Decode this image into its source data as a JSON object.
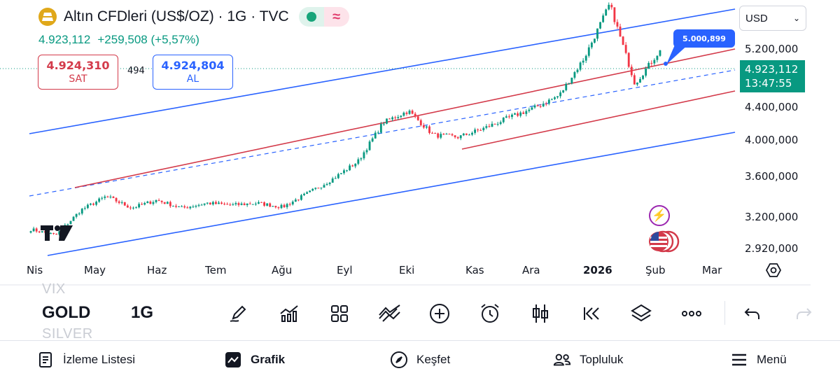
{
  "header": {
    "title": "Altın CFDleri (US$/OZ) · 1G · TVC",
    "last_price": "4.923,112",
    "change": "+259,508 (+5,57%)",
    "market_status_icon": "market-open-icon",
    "wave_icon": "wave-icon"
  },
  "quote": {
    "sell_price": "4.924,310",
    "sell_label": "SAT",
    "spread": "494",
    "buy_price": "4.924,804",
    "buy_label": "AL"
  },
  "currency": {
    "selected": "USD"
  },
  "price_axis": {
    "labels": [
      "5.200,000",
      "4.400,000",
      "4.000,000",
      "3.600,000",
      "3.200,000",
      "2.920,000"
    ],
    "current_price": "4.923,112",
    "countdown": "13:47:55"
  },
  "time_axis": {
    "labels": [
      "Nis",
      "May",
      "Haz",
      "Tem",
      "Ağu",
      "Eyl",
      "Eki",
      "Kas",
      "Ara",
      "2026",
      "Şub",
      "Mar"
    ]
  },
  "annotations": {
    "callout_price": "5.000,899"
  },
  "symbol_list": {
    "above": "VIX",
    "current": "GOLD",
    "below": "SILVER",
    "interval": "1G"
  },
  "toolbar": {
    "icons": [
      "pencil-icon",
      "indicators-icon",
      "layout-grid-icon",
      "compare-icon",
      "add-icon",
      "alarm-icon",
      "candles-icon",
      "replay-icon",
      "layers-icon",
      "more-icon",
      "undo-icon",
      "redo-icon"
    ]
  },
  "bottom_nav": {
    "watchlist": "İzleme Listesi",
    "chart": "Grafik",
    "explore": "Keşfet",
    "community": "Topluluk",
    "menu": "Menü"
  },
  "colors": {
    "up": "#089981",
    "down": "#f23645",
    "channel_blue": "#2962ff",
    "channel_red": "#d33a4a",
    "gold": "#e0a81a"
  },
  "chart_data": {
    "type": "candlestick",
    "symbol": "Altın CFDleri (US$/OZ)",
    "interval": "1G",
    "x_labels": [
      "Nis",
      "May",
      "Haz",
      "Tem",
      "Ağu",
      "Eyl",
      "Eki",
      "Kas",
      "Ara",
      "2026",
      "Şub",
      "Mar"
    ],
    "y_ticks": [
      2920,
      3200,
      3600,
      4000,
      4400,
      5200
    ],
    "ylim": [
      2900,
      5600
    ],
    "close_path": [
      [
        "Nis",
        3080
      ],
      [
        "Nis",
        3020
      ],
      [
        "Nis",
        3280
      ],
      [
        "May",
        3420
      ],
      [
        "May",
        3300
      ],
      [
        "Haz",
        3380
      ],
      [
        "Haz",
        3300
      ],
      [
        "Tem",
        3350
      ],
      [
        "Tem",
        3330
      ],
      [
        "Ağu",
        3350
      ],
      [
        "Ağu",
        3310
      ],
      [
        "Eyl",
        3450
      ],
      [
        "Eyl",
        3600
      ],
      [
        "Eki",
        3780
      ],
      [
        "Eki",
        4180
      ],
      [
        "Eki",
        4300
      ],
      [
        "Kas",
        4050
      ],
      [
        "Kas",
        4030
      ],
      [
        "Ara",
        4120
      ],
      [
        "Ara",
        4230
      ],
      [
        "2026",
        4330
      ],
      [
        "2026",
        4460
      ],
      [
        "Şub",
        4850
      ],
      [
        "Şub",
        5400
      ],
      [
        "Şub",
        4580
      ],
      [
        "Şub",
        4923
      ]
    ],
    "last_close": 4923.112
  }
}
